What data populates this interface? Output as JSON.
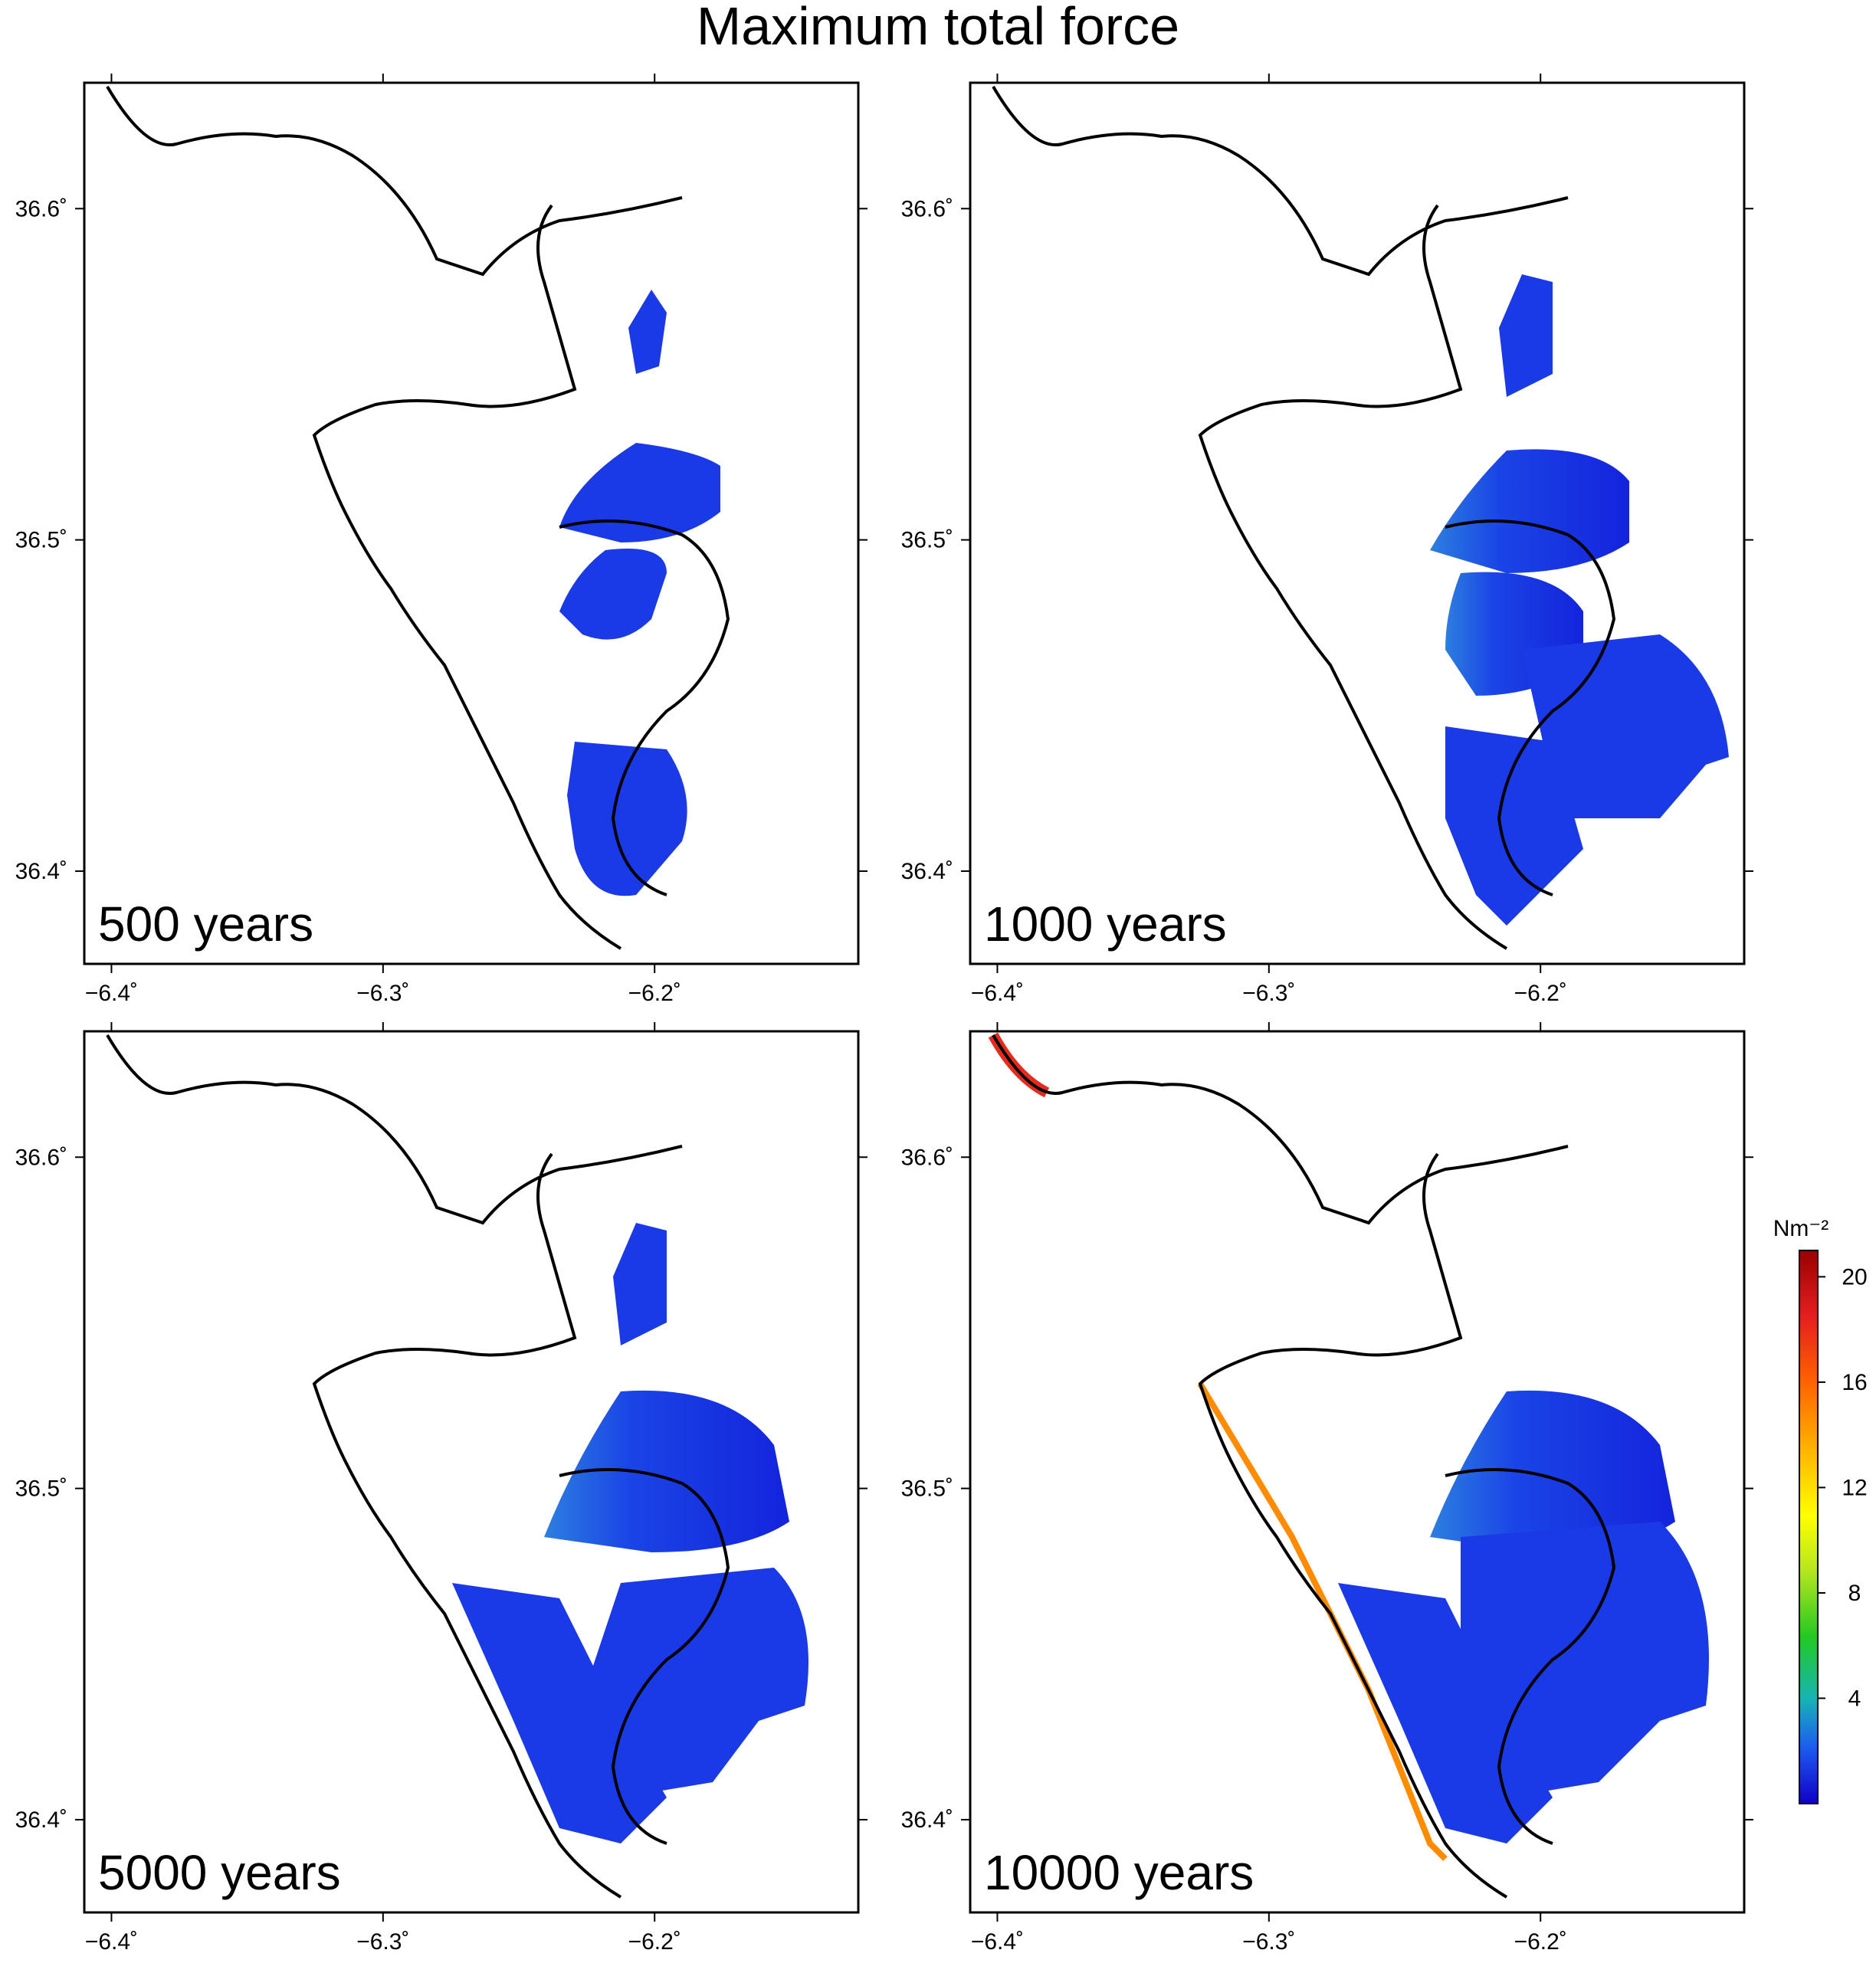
{
  "title": "Maximum total force",
  "panels": [
    {
      "label": "500 years"
    },
    {
      "label": "1000 years"
    },
    {
      "label": "5000 years"
    },
    {
      "label": "10000 years"
    }
  ],
  "axes": {
    "x_ticks": [
      "−6.4˚",
      "−6.3˚",
      "−6.2˚"
    ],
    "x_tick_values": [
      -6.4,
      -6.3,
      -6.2
    ],
    "y_ticks": [
      "36.6˚",
      "36.5˚",
      "36.4˚"
    ],
    "y_tick_values": [
      36.6,
      36.5,
      36.4
    ],
    "x_range": [
      -6.41,
      -6.125
    ],
    "y_range": [
      36.372,
      36.638
    ]
  },
  "colorbar": {
    "unit": "Nm⁻²",
    "ticks": [
      "4",
      "8",
      "12",
      "16",
      "20"
    ],
    "tick_values": [
      4,
      8,
      12,
      16,
      20
    ],
    "range": [
      0,
      21
    ],
    "colormap": [
      "#1000c8",
      "#1d5af0",
      "#17b4b4",
      "#22c822",
      "#b4e61e",
      "#ffff00",
      "#ffb400",
      "#ff6400",
      "#e61e1e",
      "#9b0000"
    ]
  }
}
